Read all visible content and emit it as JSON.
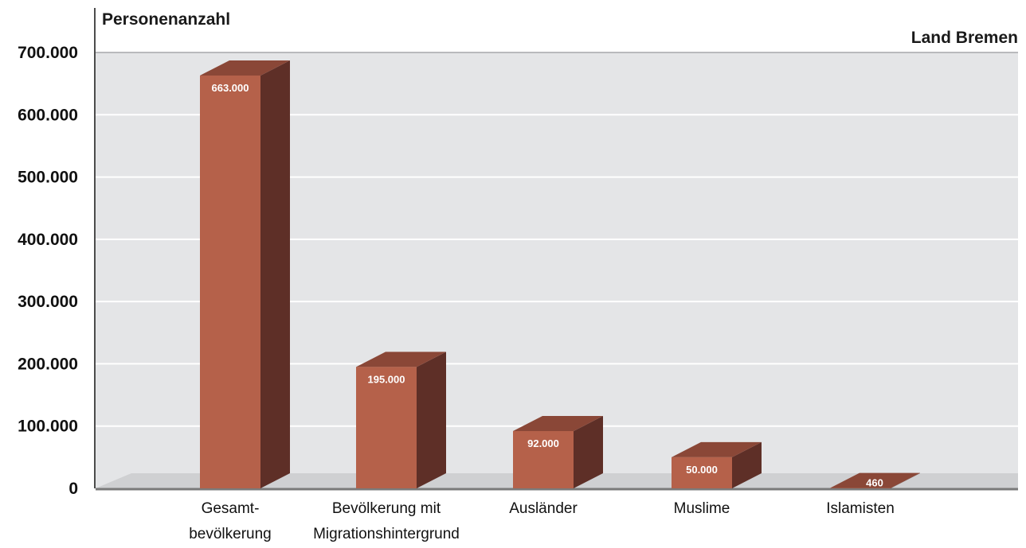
{
  "chart_data": {
    "type": "bar",
    "title": "Land Bremen",
    "ylabel": "Personenanzahl",
    "xlabel": "",
    "ylim": [
      0,
      700000
    ],
    "yticks": [
      {
        "value": 0,
        "label": "0"
      },
      {
        "value": 100000,
        "label": "100.000"
      },
      {
        "value": 200000,
        "label": "200.000"
      },
      {
        "value": 300000,
        "label": "300.000"
      },
      {
        "value": 400000,
        "label": "400.000"
      },
      {
        "value": 500000,
        "label": "500.000"
      },
      {
        "value": 600000,
        "label": "600.000"
      },
      {
        "value": 700000,
        "label": "700.000"
      }
    ],
    "categories": [
      [
        "Gesamt-",
        "bevölkerung"
      ],
      [
        "Bevölkerung mit",
        "Migrationshintergrund"
      ],
      [
        "Ausländer"
      ],
      [
        "Muslime"
      ],
      [
        "Islamisten"
      ]
    ],
    "values": [
      663000,
      195000,
      92000,
      50000,
      460
    ],
    "value_labels": [
      "663.000",
      "195.000",
      "92.000",
      "50.000",
      "460"
    ],
    "grid": true,
    "three_d": true,
    "colors": {
      "bar_front": "#b5614a",
      "bar_side": "#5e2f27",
      "bar_top": "#8a4737",
      "plot_background": "#e4e5e7",
      "gridline": "#ffffff",
      "floor": "#cfd0d2",
      "baseline": "#7a7a7a",
      "axis": "#111111"
    }
  }
}
